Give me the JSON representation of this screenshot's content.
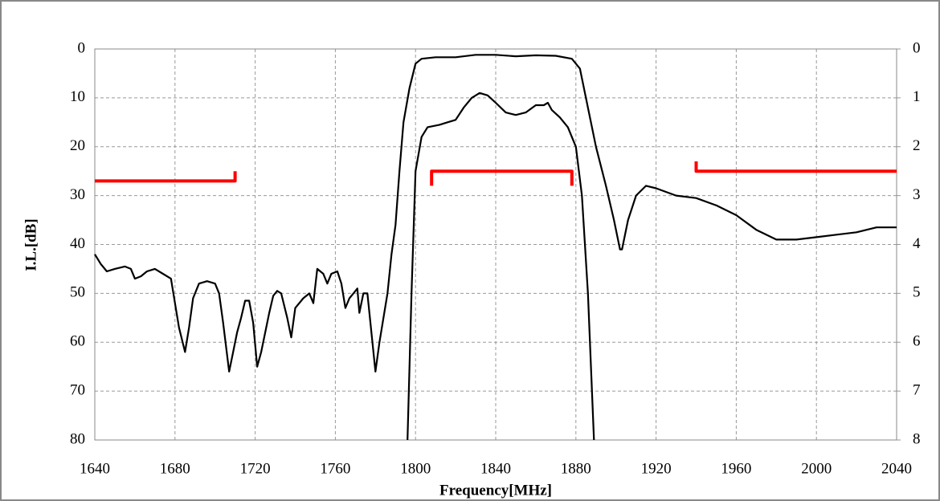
{
  "chart_data": {
    "type": "line",
    "xlabel": "Frequency[MHz]",
    "ylabel": "I.L.[dB]",
    "xlim": [
      1640,
      2040
    ],
    "xticks": [
      1640,
      1680,
      1720,
      1760,
      1800,
      1840,
      1880,
      1920,
      1960,
      2000,
      2040
    ],
    "ylim": [
      80,
      0
    ],
    "yticks": [
      0,
      10,
      20,
      30,
      40,
      50,
      60,
      70,
      80
    ],
    "y2lim": [
      8,
      0
    ],
    "y2ticks": [
      0,
      1,
      2,
      3,
      4,
      5,
      6,
      7,
      8
    ],
    "grid": true,
    "series": [
      {
        "color": "#000000",
        "x": [
          1640,
          1643,
          1646,
          1650,
          1655,
          1658,
          1660,
          1663,
          1666,
          1670,
          1674,
          1678,
          1680,
          1682,
          1685,
          1687,
          1689,
          1692,
          1696,
          1700,
          1702,
          1704,
          1707,
          1709,
          1711,
          1713,
          1715,
          1717,
          1719,
          1721,
          1723,
          1725,
          1727,
          1729,
          1731,
          1733,
          1736,
          1738,
          1740,
          1744,
          1747,
          1749,
          1751,
          1754,
          1756,
          1758,
          1761,
          1763,
          1765,
          1767,
          1769,
          1771,
          1772,
          1774,
          1776,
          1778,
          1780,
          1782,
          1784,
          1786,
          1788,
          1790,
          1792,
          1794,
          1797,
          1800,
          1803,
          1810,
          1820,
          1830,
          1840,
          1850,
          1860,
          1870,
          1878,
          1882,
          1886,
          1890,
          1895,
          1899,
          1902,
          1903,
          1906,
          1910,
          1915,
          1920,
          1930,
          1940,
          1950,
          1960,
          1970,
          1980,
          1990,
          2000,
          2010,
          2020,
          2030,
          2040
        ],
        "values": [
          42,
          44,
          45.5,
          45,
          44.5,
          45,
          47,
          46.5,
          45.5,
          45,
          46,
          47,
          52,
          57,
          62,
          57,
          51,
          48,
          47.5,
          48,
          50,
          56,
          66,
          62,
          58,
          55,
          51.5,
          51.5,
          56,
          65,
          62,
          58,
          54,
          50.5,
          49.5,
          50,
          55,
          59,
          53,
          51,
          50,
          52,
          45,
          46,
          48,
          46,
          45.5,
          48,
          53,
          51,
          50,
          49,
          54,
          50,
          50,
          58,
          66,
          60,
          55,
          50,
          42,
          36,
          25,
          15,
          8,
          3,
          2,
          1.7,
          1.7,
          1.2,
          1.2,
          1.5,
          1.3,
          1.4,
          2,
          4,
          12,
          20,
          28,
          35,
          41,
          41,
          35,
          30,
          28,
          28.5,
          30,
          30.5,
          32,
          34,
          37,
          39,
          39,
          38.5,
          38,
          37.5,
          36.5,
          36.5
        ]
      },
      {
        "color": "#000000",
        "axis": "y2",
        "x": [
          1796,
          1798,
          1800,
          1803,
          1806,
          1812,
          1816,
          1820,
          1824,
          1828,
          1832,
          1836,
          1840,
          1845,
          1850,
          1855,
          1860,
          1864,
          1866,
          1868,
          1872,
          1876,
          1880,
          1883,
          1886,
          1889
        ],
        "values": [
          8,
          5,
          2.5,
          1.8,
          1.6,
          1.55,
          1.5,
          1.45,
          1.2,
          1.0,
          0.9,
          0.95,
          1.1,
          1.3,
          1.35,
          1.3,
          1.15,
          1.15,
          1.1,
          1.25,
          1.4,
          1.6,
          2,
          3,
          5,
          8
        ]
      },
      {
        "color": "#ff0000",
        "x": [
          1640,
          1710,
          1710
        ],
        "values": [
          27,
          27,
          25
        ]
      },
      {
        "color": "#ff0000",
        "x": [
          1808,
          1808,
          1878,
          1878
        ],
        "values": [
          28,
          25,
          25,
          28
        ]
      },
      {
        "color": "#ff0000",
        "x": [
          1940,
          1940,
          2040
        ],
        "values": [
          23,
          25,
          25
        ]
      }
    ]
  }
}
